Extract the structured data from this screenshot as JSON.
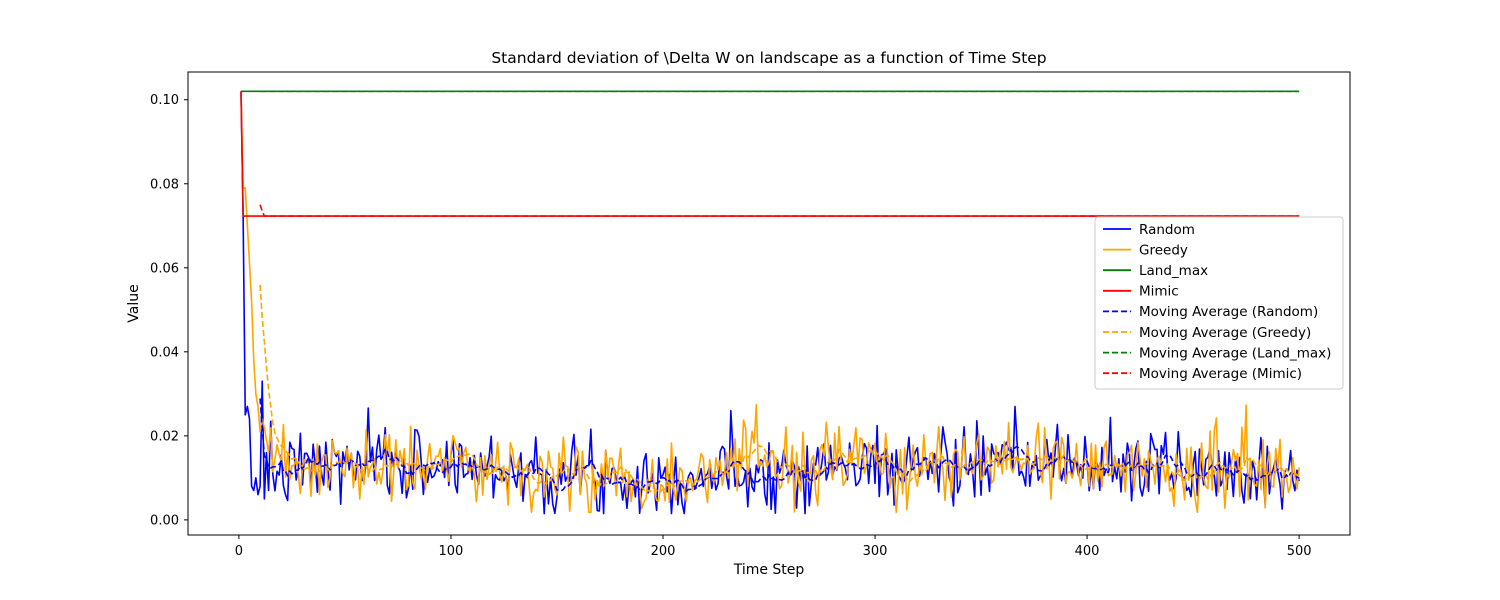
{
  "chart_data": {
    "type": "line",
    "title": "Standard deviation of \\Delta W on landscape as a function of Time Step",
    "xlabel": "Time Step",
    "ylabel": "Value",
    "xlim": [
      -24,
      524
    ],
    "ylim": [
      -0.0036,
      0.1066
    ],
    "xticks": [
      0,
      100,
      200,
      300,
      400,
      500
    ],
    "yticks": [
      0.0,
      0.02,
      0.04,
      0.06,
      0.08,
      0.1
    ],
    "ytick_labels": [
      "0.00",
      "0.02",
      "0.04",
      "0.06",
      "0.08",
      "0.10"
    ],
    "grid": false,
    "legend_position": "right",
    "moving_average_window": 10,
    "series": [
      {
        "name": "Random",
        "color": "#0000ff",
        "style": "solid",
        "kind": "noisy",
        "initial": [
          0.102,
          0.072,
          0.025,
          0.027,
          0.024,
          0.008,
          0.007,
          0.01,
          0.006,
          0.008,
          0.033,
          0.005,
          0.016,
          0.007
        ],
        "mean_by_step": [
          [
            14,
            0.011
          ],
          [
            50,
            0.013
          ],
          [
            100,
            0.013
          ],
          [
            150,
            0.011
          ],
          [
            200,
            0.01
          ],
          [
            250,
            0.012
          ],
          [
            300,
            0.013
          ],
          [
            350,
            0.013
          ],
          [
            400,
            0.013
          ],
          [
            450,
            0.012
          ],
          [
            500,
            0.012
          ]
        ],
        "noise": 0.0045,
        "min": 0.0015,
        "max": 0.027,
        "seed": 7,
        "end": 500
      },
      {
        "name": "Greedy",
        "color": "#ffa500",
        "style": "solid",
        "kind": "noisy",
        "initial": [
          0.102,
          0.079,
          0.079,
          0.07,
          0.061,
          0.052,
          0.038,
          0.03,
          0.027,
          0.021,
          0.024,
          0.022,
          0.019,
          0.016
        ],
        "mean_by_step": [
          [
            14,
            0.013
          ],
          [
            50,
            0.012
          ],
          [
            100,
            0.013
          ],
          [
            150,
            0.011
          ],
          [
            200,
            0.01
          ],
          [
            250,
            0.013
          ],
          [
            300,
            0.013
          ],
          [
            350,
            0.012
          ],
          [
            400,
            0.013
          ],
          [
            450,
            0.012
          ],
          [
            500,
            0.012
          ]
        ],
        "noise": 0.0045,
        "min": 0.0018,
        "max": 0.029,
        "seed": 23,
        "end": 500
      },
      {
        "name": "Land_max",
        "color": "#008000",
        "style": "solid",
        "kind": "constant",
        "start": 1,
        "end": 500,
        "value": 0.102
      },
      {
        "name": "Mimic",
        "color": "#ff0000",
        "style": "solid",
        "kind": "constant",
        "start": 1,
        "end": 500,
        "initial": [
          0.102
        ],
        "value": 0.0723
      },
      {
        "name": "Moving Average (Random)",
        "color": "#0000ff",
        "style": "dashed",
        "kind": "moving_average",
        "of": 0
      },
      {
        "name": "Moving Average (Greedy)",
        "color": "#ffa500",
        "style": "dashed",
        "kind": "moving_average",
        "of": 1
      },
      {
        "name": "Moving Average (Land_max)",
        "color": "#008000",
        "style": "dashed",
        "kind": "moving_average",
        "of": 2
      },
      {
        "name": "Moving Average (Mimic)",
        "color": "#ff0000",
        "style": "dashed",
        "kind": "moving_average",
        "of": 3,
        "initial": [
          0.075,
          0.0735
        ]
      }
    ]
  }
}
